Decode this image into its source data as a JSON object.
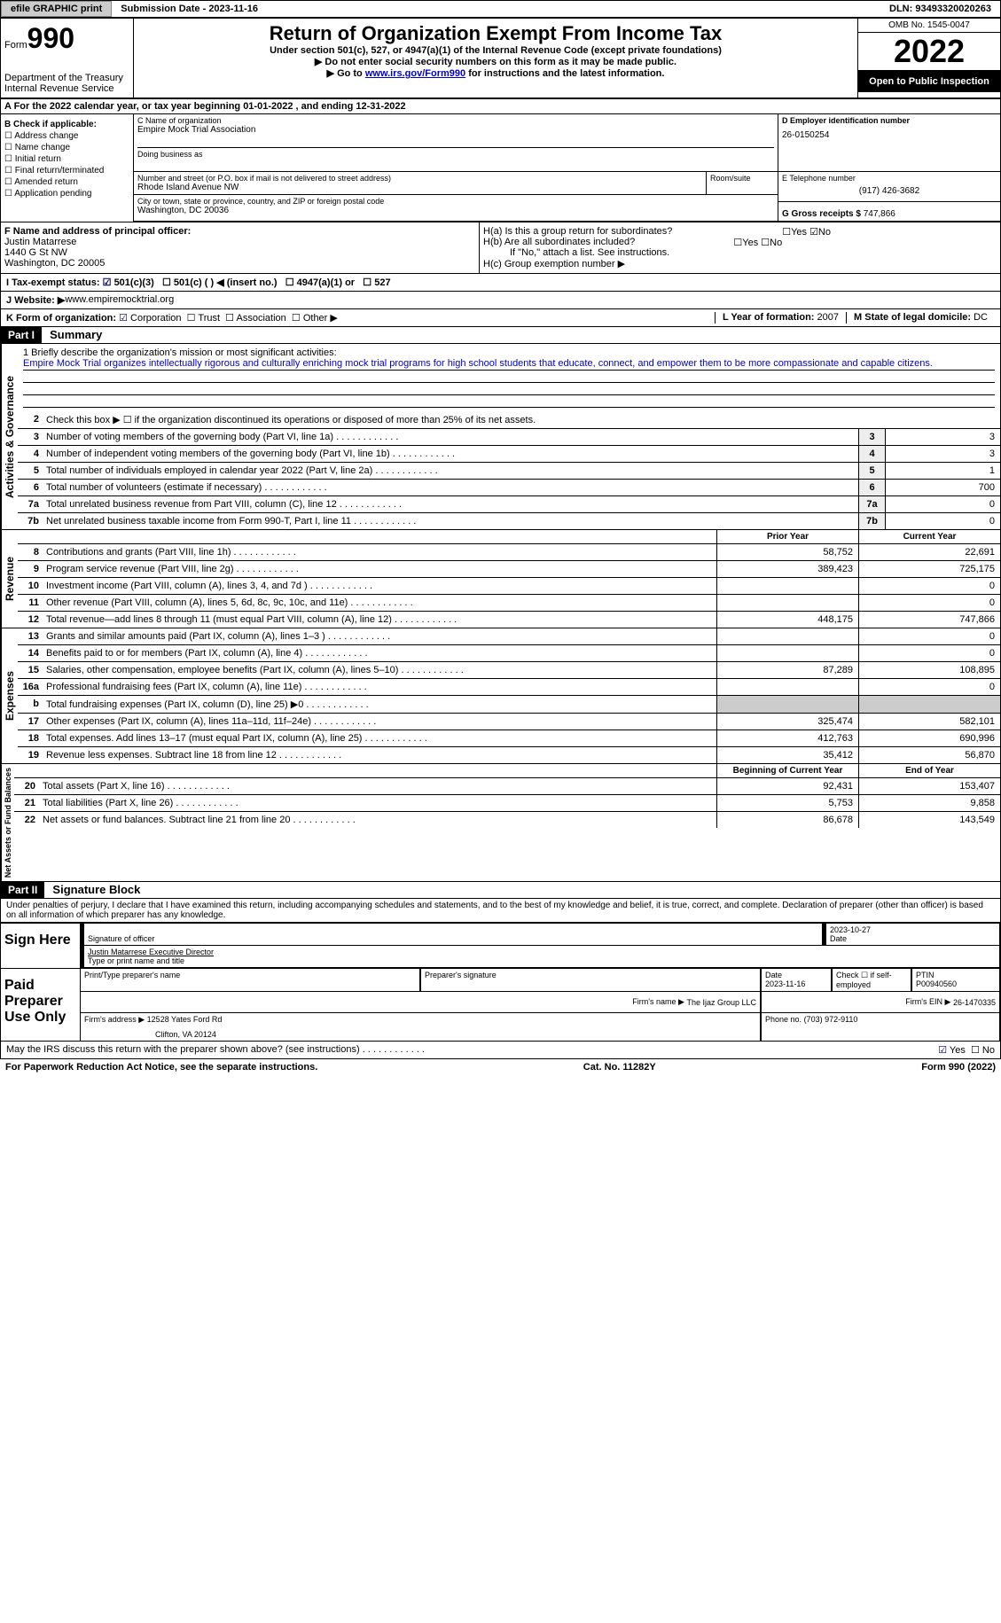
{
  "topbar": {
    "efile_btn": "efile GRAPHIC print",
    "submission_date": "Submission Date - 2023-11-16",
    "dln": "DLN: 93493320020263"
  },
  "header": {
    "form_label": "Form",
    "form_num": "990",
    "dept": "Department of the Treasury",
    "irs": "Internal Revenue Service",
    "title": "Return of Organization Exempt From Income Tax",
    "subtitle": "Under section 501(c), 527, or 4947(a)(1) of the Internal Revenue Code (except private foundations)",
    "note1": "▶ Do not enter social security numbers on this form as it may be made public.",
    "note2_pre": "▶ Go to ",
    "note2_link": "www.irs.gov/Form990",
    "note2_post": " for instructions and the latest information.",
    "omb": "OMB No. 1545-0047",
    "year": "2022",
    "open": "Open to Public Inspection"
  },
  "section_a": "A For the 2022 calendar year, or tax year beginning 01-01-2022   , and ending 12-31-2022",
  "col_b": {
    "title": "B Check if applicable:",
    "items": [
      "Address change",
      "Name change",
      "Initial return",
      "Final return/terminated",
      "Amended return",
      "Application pending"
    ]
  },
  "col_c": {
    "name_label": "C Name of organization",
    "name": "Empire Mock Trial Association",
    "dba_label": "Doing business as",
    "street_label": "Number and street (or P.O. box if mail is not delivered to street address)",
    "street": "Rhode Island Avenue NW",
    "room_label": "Room/suite",
    "city_label": "City or town, state or province, country, and ZIP or foreign postal code",
    "city": "Washington, DC  20036"
  },
  "col_d": {
    "ein_label": "D Employer identification number",
    "ein": "26-0150254",
    "phone_label": "E Telephone number",
    "phone": "(917) 426-3682",
    "gross_label": "G Gross receipts $",
    "gross": "747,866"
  },
  "row_f": {
    "label": "F  Name and address of principal officer:",
    "name": "Justin Matarrese",
    "addr1": "1440 G St NW",
    "addr2": "Washington, DC  20005"
  },
  "row_h": {
    "ha": "H(a)  Is this a group return for subordinates?",
    "hb": "H(b)  Are all subordinates included?",
    "hb_note": "If \"No,\" attach a list. See instructions.",
    "hc": "H(c)  Group exemption number ▶"
  },
  "row_i": {
    "label": "I    Tax-exempt status:",
    "opts": [
      "501(c)(3)",
      "501(c) (  ) ◀ (insert no.)",
      "4947(a)(1) or",
      "527"
    ]
  },
  "row_j": {
    "label": "J   Website: ▶",
    "value": "  www.empiremocktrial.org"
  },
  "row_k": {
    "label": "K Form of organization:",
    "opts": [
      "Corporation",
      "Trust",
      "Association",
      "Other ▶"
    ]
  },
  "row_l": {
    "label": "L Year of formation:",
    "value": "2007"
  },
  "row_m": {
    "label": "M State of legal domicile:",
    "value": "DC"
  },
  "part1": {
    "hdr": "Part I",
    "title": "Summary"
  },
  "mission": {
    "label": "1   Briefly describe the organization's mission or most significant activities:",
    "text": "Empire Mock Trial organizes intellectually rigorous and culturally enriching mock trial programs for high school students that educate, connect, and empower them to be more compassionate and capable citizens."
  },
  "line2": "Check this box ▶ ☐  if the organization discontinued its operations or disposed of more than 25% of its net assets.",
  "activities": [
    {
      "n": "3",
      "d": "Number of voting members of the governing body (Part VI, line 1a)",
      "v": "3"
    },
    {
      "n": "4",
      "d": "Number of independent voting members of the governing body (Part VI, line 1b)",
      "v": "3"
    },
    {
      "n": "5",
      "d": "Total number of individuals employed in calendar year 2022 (Part V, line 2a)",
      "v": "1"
    },
    {
      "n": "6",
      "d": "Total number of volunteers (estimate if necessary)",
      "v": "700"
    },
    {
      "n": "7a",
      "d": "Total unrelated business revenue from Part VIII, column (C), line 12",
      "v": "0"
    },
    {
      "n": "7b",
      "d": "Net unrelated business taxable income from Form 990-T, Part I, line 11",
      "v": "0"
    }
  ],
  "revenue_hdr": {
    "prior": "Prior Year",
    "current": "Current Year"
  },
  "revenue": [
    {
      "n": "8",
      "d": "Contributions and grants (Part VIII, line 1h)",
      "p": "58,752",
      "c": "22,691"
    },
    {
      "n": "9",
      "d": "Program service revenue (Part VIII, line 2g)",
      "p": "389,423",
      "c": "725,175"
    },
    {
      "n": "10",
      "d": "Investment income (Part VIII, column (A), lines 3, 4, and 7d )",
      "p": "",
      "c": "0"
    },
    {
      "n": "11",
      "d": "Other revenue (Part VIII, column (A), lines 5, 6d, 8c, 9c, 10c, and 11e)",
      "p": "",
      "c": "0"
    },
    {
      "n": "12",
      "d": "Total revenue—add lines 8 through 11 (must equal Part VIII, column (A), line 12)",
      "p": "448,175",
      "c": "747,866"
    }
  ],
  "expenses": [
    {
      "n": "13",
      "d": "Grants and similar amounts paid (Part IX, column (A), lines 1–3 )",
      "p": "",
      "c": "0"
    },
    {
      "n": "14",
      "d": "Benefits paid to or for members (Part IX, column (A), line 4)",
      "p": "",
      "c": "0"
    },
    {
      "n": "15",
      "d": "Salaries, other compensation, employee benefits (Part IX, column (A), lines 5–10)",
      "p": "87,289",
      "c": "108,895"
    },
    {
      "n": "16a",
      "d": "Professional fundraising fees (Part IX, column (A), line 11e)",
      "p": "",
      "c": "0"
    },
    {
      "n": "b",
      "d": "Total fundraising expenses (Part IX, column (D), line 25) ▶0",
      "p": "GRAY",
      "c": "GRAY"
    },
    {
      "n": "17",
      "d": "Other expenses (Part IX, column (A), lines 11a–11d, 11f–24e)",
      "p": "325,474",
      "c": "582,101"
    },
    {
      "n": "18",
      "d": "Total expenses. Add lines 13–17 (must equal Part IX, column (A), line 25)",
      "p": "412,763",
      "c": "690,996"
    },
    {
      "n": "19",
      "d": "Revenue less expenses. Subtract line 18 from line 12",
      "p": "35,412",
      "c": "56,870"
    }
  ],
  "netassets_hdr": {
    "begin": "Beginning of Current Year",
    "end": "End of Year"
  },
  "netassets": [
    {
      "n": "20",
      "d": "Total assets (Part X, line 16)",
      "p": "92,431",
      "c": "153,407"
    },
    {
      "n": "21",
      "d": "Total liabilities (Part X, line 26)",
      "p": "5,753",
      "c": "9,858"
    },
    {
      "n": "22",
      "d": "Net assets or fund balances. Subtract line 21 from line 20",
      "p": "86,678",
      "c": "143,549"
    }
  ],
  "part2": {
    "hdr": "Part II",
    "title": "Signature Block"
  },
  "perjury": "Under penalties of perjury, I declare that I have examined this return, including accompanying schedules and statements, and to the best of my knowledge and belief, it is true, correct, and complete. Declaration of preparer (other than officer) is based on all information of which preparer has any knowledge.",
  "sign": {
    "left": "Sign Here",
    "sig_officer": "Signature of officer",
    "date_label": "Date",
    "date": "2023-10-27",
    "name": "Justin Matarrese  Executive Director",
    "name_label": "Type or print name and title"
  },
  "preparer": {
    "left": "Paid Preparer Use Only",
    "print_label": "Print/Type preparer's name",
    "sig_label": "Preparer's signature",
    "date_label": "Date",
    "date": "2023-11-16",
    "self_label": "Check ☐ if self-employed",
    "ptin_label": "PTIN",
    "ptin": "P00940560",
    "firm_name_label": "Firm's name    ▶",
    "firm_name": "The Ijaz Group LLC",
    "firm_ein_label": "Firm's EIN ▶",
    "firm_ein": "26-1470335",
    "firm_addr_label": "Firm's address ▶",
    "firm_addr1": "12528 Yates Ford Rd",
    "firm_addr2": "Clifton, VA  20124",
    "firm_phone_label": "Phone no.",
    "firm_phone": "(703) 972-9110"
  },
  "footer": {
    "discuss": "May the IRS discuss this return with the preparer shown above? (see instructions)",
    "paperwork": "For Paperwork Reduction Act Notice, see the separate instructions.",
    "cat": "Cat. No. 11282Y",
    "form": "Form 990 (2022)"
  },
  "vert_labels": {
    "activities": "Activities & Governance",
    "revenue": "Revenue",
    "expenses": "Expenses",
    "netassets": "Net Assets or Fund Balances"
  }
}
